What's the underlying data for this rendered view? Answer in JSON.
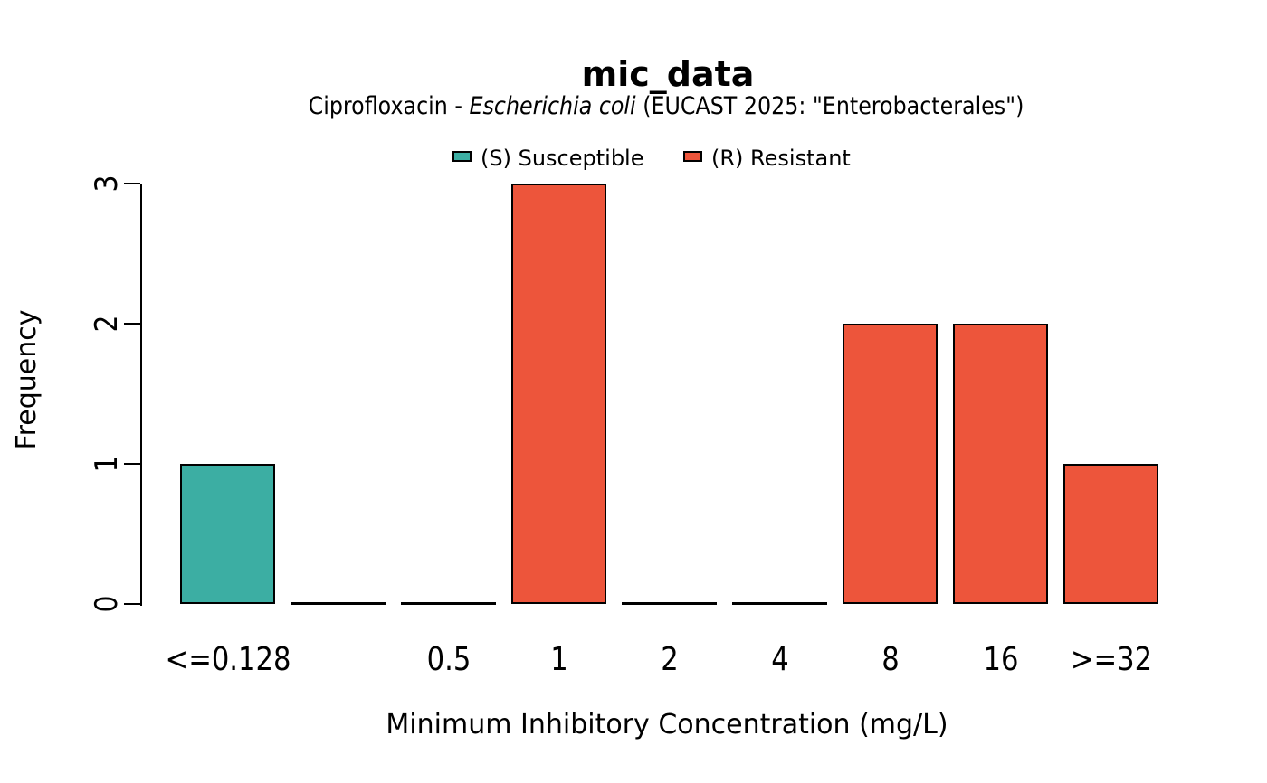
{
  "chart_data": {
    "type": "bar",
    "title": "mic_data",
    "subtitle": "Ciprofloxacin - Escherichia coli (EUCAST 2025: \"Enterobacterales\")",
    "subtitle_parts": {
      "prefix": "Ciprofloxacin - ",
      "italic": "Escherichia coli",
      "suffix": " (EUCAST 2025: \"Enterobacterales\")"
    },
    "xlabel": "Minimum Inhibitory Concentration (mg/L)",
    "ylabel": "Frequency",
    "ylim": [
      0,
      3
    ],
    "yticks": [
      "0",
      "1",
      "2",
      "3"
    ],
    "categories": [
      "<=0.128",
      "",
      "0.5",
      "1",
      "2",
      "4",
      "8",
      "16",
      ">=32"
    ],
    "values": [
      1,
      0,
      0,
      3,
      0,
      0,
      2,
      2,
      1
    ],
    "series": [
      {
        "name": "(S) Susceptible",
        "values": [
          1,
          0,
          0,
          0,
          0,
          0,
          0,
          0,
          0
        ]
      },
      {
        "name": "(R) Resistant",
        "values": [
          0,
          0,
          0,
          3,
          0,
          0,
          2,
          2,
          1
        ]
      }
    ],
    "bar_colors": [
      "#3CAEA3",
      "#ED553B",
      "#ED553B",
      "#ED553B",
      "#ED553B",
      "#ED553B",
      "#ED553B",
      "#ED553B",
      "#ED553B"
    ],
    "legend": [
      {
        "label": "(S) Susceptible",
        "color": "#3CAEA3"
      },
      {
        "label": "(R) Resistant",
        "color": "#ED553B"
      }
    ],
    "legend_position": "top",
    "grid": false,
    "colors": {
      "susceptible": "#3CAEA3",
      "resistant": "#ED553B",
      "bar_border": "#000000",
      "axis": "#000000",
      "background": "#FFFFFF"
    }
  }
}
